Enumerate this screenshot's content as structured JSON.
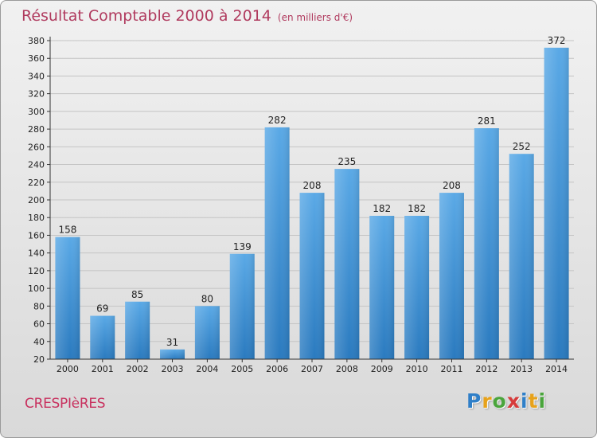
{
  "title": "Résultat Comptable 2000 à 2014",
  "subtitle": "(en milliers d'€)",
  "commune": "CRESPIèRES",
  "logo": {
    "letters": [
      {
        "ch": "P",
        "color": "#2f7fc8"
      },
      {
        "ch": "r",
        "color": "#e7a21b"
      },
      {
        "ch": "o",
        "color": "#4aa53c"
      },
      {
        "ch": "x",
        "color": "#d63a3a"
      },
      {
        "ch": "i",
        "color": "#2f7fc8"
      },
      {
        "ch": "t",
        "color": "#e7a21b"
      },
      {
        "ch": "i",
        "color": "#4aa53c"
      }
    ]
  },
  "colors": {
    "bar_top": "#5aa9e6",
    "bar_bottom": "#2a7abf",
    "accent": "#b03a5e"
  },
  "chart_data": {
    "type": "bar",
    "categories": [
      "2000",
      "2001",
      "2002",
      "2003",
      "2004",
      "2005",
      "2006",
      "2007",
      "2008",
      "2009",
      "2010",
      "2011",
      "2012",
      "2013",
      "2014"
    ],
    "values": [
      158,
      69,
      85,
      31,
      80,
      139,
      282,
      208,
      235,
      182,
      182,
      208,
      281,
      252,
      372
    ],
    "title": "Résultat Comptable 2000 à 2014",
    "ylim": [
      20,
      380
    ],
    "yticks": [
      20,
      40,
      60,
      80,
      100,
      120,
      140,
      160,
      180,
      200,
      220,
      240,
      260,
      280,
      300,
      320,
      340,
      360,
      380
    ],
    "grid": true
  }
}
